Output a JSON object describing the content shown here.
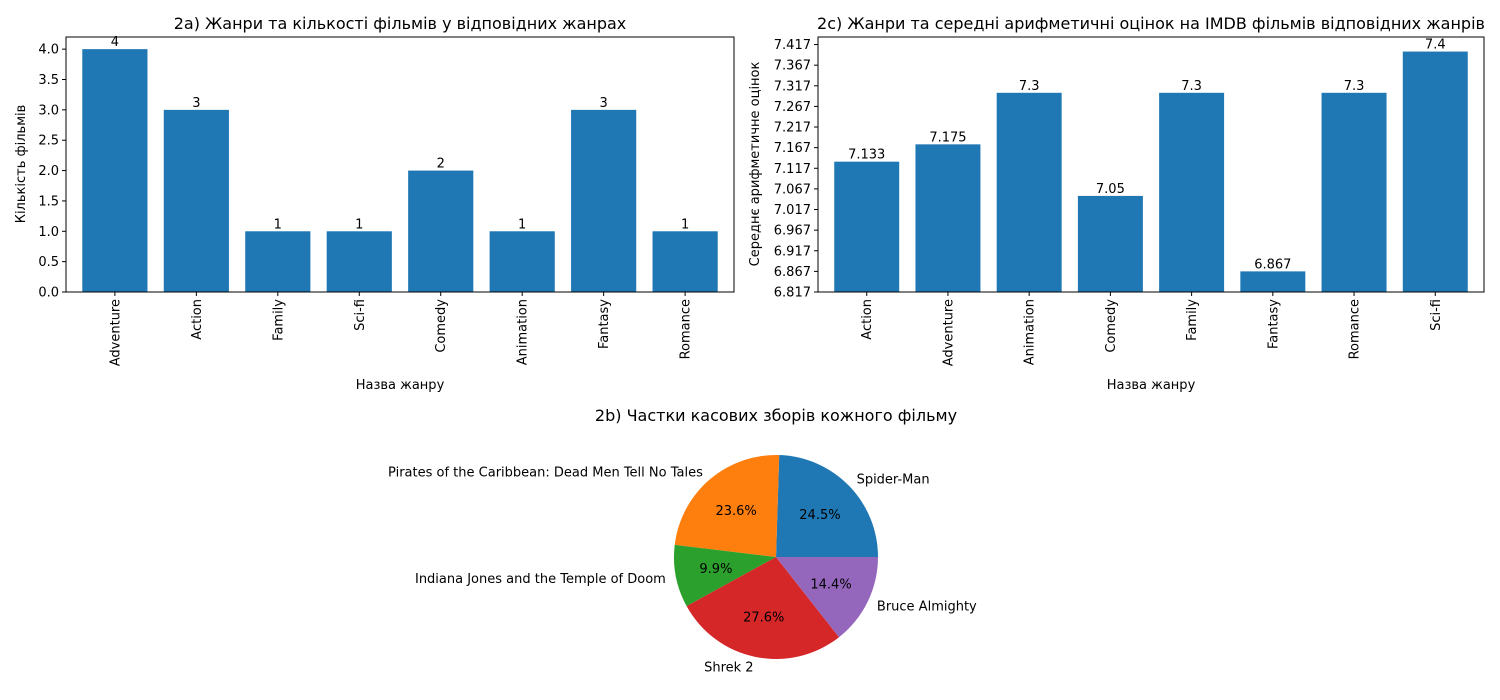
{
  "chart_data": [
    {
      "type": "bar",
      "title": "2a) Жанри та кількості фільмів у відповідних жанрах",
      "xlabel": "Назва жанру",
      "ylabel": "Кількість фільмів",
      "categories": [
        "Adventure",
        "Action",
        "Family",
        "Sci-fi",
        "Comedy",
        "Animation",
        "Fantasy",
        "Romance"
      ],
      "values": [
        4,
        3,
        1,
        1,
        2,
        1,
        3,
        1
      ],
      "data_labels": [
        "4",
        "3",
        "1",
        "1",
        "2",
        "1",
        "3",
        "1"
      ],
      "ylim": [
        0,
        4.2
      ],
      "yticks": [
        0.0,
        0.5,
        1.0,
        1.5,
        2.0,
        2.5,
        3.0,
        3.5,
        4.0
      ],
      "ytick_labels": [
        "0.0",
        "0.5",
        "1.0",
        "1.5",
        "2.0",
        "2.5",
        "3.0",
        "3.5",
        "4.0"
      ],
      "color": "#1f77b4",
      "grid": false
    },
    {
      "type": "bar",
      "title": "2c) Жанри та середні арифметичні оцінок на IMDB фільмів відповідних жанрів",
      "xlabel": "Назва жанру",
      "ylabel": "Середнє арифметичне оцінок",
      "categories": [
        "Action",
        "Adventure",
        "Animation",
        "Comedy",
        "Family",
        "Fantasy",
        "Romance",
        "Sci-fi"
      ],
      "values": [
        7.133,
        7.175,
        7.3,
        7.05,
        7.3,
        6.867,
        7.3,
        7.4
      ],
      "data_labels": [
        "7.133",
        "7.175",
        "7.3",
        "7.05",
        "7.3",
        "6.867",
        "7.3",
        "7.4"
      ],
      "ylim": [
        6.817,
        7.4353
      ],
      "yticks": [
        6.817,
        6.867,
        6.917,
        6.967,
        7.017,
        7.067,
        7.117,
        7.167,
        7.217,
        7.267,
        7.317,
        7.367,
        7.417
      ],
      "ytick_labels": [
        "6.817",
        "6.867",
        "6.917",
        "6.967",
        "7.017",
        "7.067",
        "7.117",
        "7.167",
        "7.217",
        "7.267",
        "7.317",
        "7.367",
        "7.417"
      ],
      "color": "#1f77b4",
      "grid": false
    },
    {
      "type": "pie",
      "title": "2b) Частки касових зборів кожного фільму",
      "labels": [
        "Spider-Man",
        "Pirates of the Caribbean: Dead Men Tell No Tales",
        "Indiana Jones and the Temple of Doom",
        "Shrek 2",
        "Bruce Almighty"
      ],
      "values": [
        24.5,
        23.6,
        9.9,
        27.6,
        14.4
      ],
      "pct_labels": [
        "24.5%",
        "23.6%",
        "9.9%",
        "27.6%",
        "14.4%"
      ],
      "colors": [
        "#1f77b4",
        "#ff7f0e",
        "#2ca02c",
        "#d62728",
        "#9467bd"
      ]
    }
  ]
}
